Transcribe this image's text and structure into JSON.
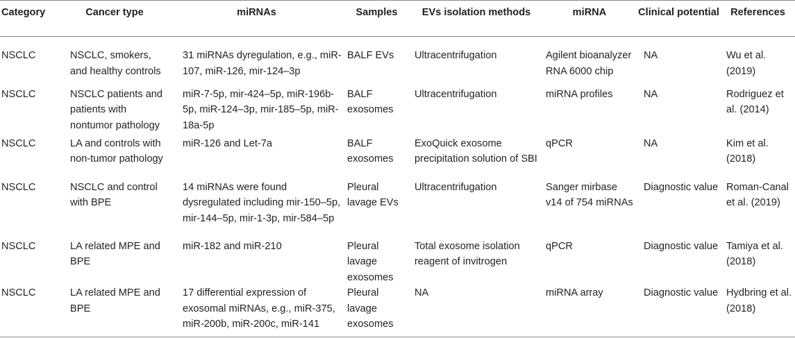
{
  "table": {
    "headers": [
      "Category",
      "Cancer type",
      "miRNAs",
      "Samples",
      "EVs isolation methods",
      "miRNA",
      "Clinical potential",
      "References"
    ],
    "rows": [
      {
        "category": "NSCLC",
        "cancer_type": "NSCLC, smokers, and healthy controls",
        "mirnas": "31 miRNAs dyregulation, e.g., miR-107, miR-126, mir-124–3p",
        "samples": "BALF EVs",
        "isolation": "Ultracentrifugation",
        "mirna_method": "Agilent bioanalyzer RNA 6000 chip",
        "clinical": "NA",
        "reference": "Wu et al. (2019)"
      },
      {
        "category": "NSCLC",
        "cancer_type": "NSCLC patients and patients with nontumor pathology",
        "mirnas": "miR-7-5p, mir-424–5p, miR-196b-5p, miR-124–3p, mir-185–5p, miR-18a-5p",
        "samples": "BALF exosomes",
        "isolation": "Ultracentrifugation",
        "mirna_method": "miRNA profiles",
        "clinical": "NA",
        "reference": "Rodriguez et al. (2014)"
      },
      {
        "category": "NSCLC",
        "cancer_type": "LA and controls with non-tumor pathology",
        "mirnas": "miR-126 and Let-7a",
        "samples": "BALF exosomes",
        "isolation": "ExoQuick exosome precipitation solution of SBI",
        "mirna_method": "qPCR",
        "clinical": "NA",
        "reference": "Kim et al. (2018)"
      },
      {
        "category": "NSCLC",
        "cancer_type": "NSCLC and control with BPE",
        "mirnas": "14 miRNAs were found dysregulated including mir-150–5p, mir-144–5p, mir-1-3p, mir-584–5p",
        "samples": "Pleural lavage EVs",
        "isolation": "Ultracentrifugation",
        "mirna_method": "Sanger mirbase v14 of 754 miRNAs",
        "clinical": "Diagnostic value",
        "reference": "Roman-Canal et al. (2019)"
      },
      {
        "category": "NSCLC",
        "cancer_type": "LA related MPE and BPE",
        "mirnas": "miR-182 and miR-210",
        "samples": "Pleural lavage exosomes",
        "isolation": "Total exosome isolation reagent of invitrogen",
        "mirna_method": "qPCR",
        "clinical": "Diagnostic value",
        "reference": "Tamiya et al. (2018)"
      },
      {
        "category": "NSCLC",
        "cancer_type": "LA related MPE and BPE",
        "mirnas": "17 differential expression of exosomal miRNAs, e.g., miR-375, miR-200b, miR-200c, miR-141",
        "samples": "Pleural lavage exosomes",
        "isolation": "NA",
        "mirna_method": "miRNA array",
        "clinical": "Diagnostic value",
        "reference": "Hydbring et al. (2018)"
      }
    ]
  }
}
